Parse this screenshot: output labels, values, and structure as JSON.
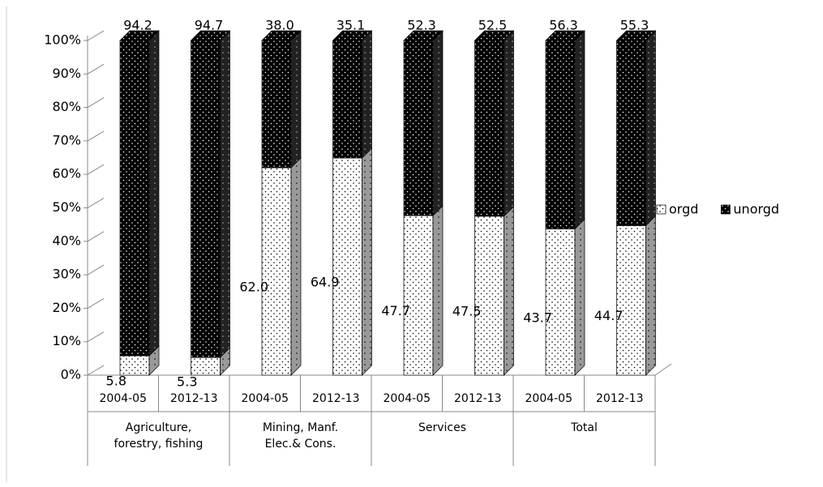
{
  "chart_data": {
    "type": "stacked_bar_3d",
    "categories": [
      "2004-05",
      "2012-13",
      "2004-05",
      "2012-13",
      "2004-05",
      "2012-13",
      "2004-05",
      "2012-13"
    ],
    "groups": [
      {
        "lines": [
          "Agriculture,",
          "forestry, fishing"
        ],
        "count": 2
      },
      {
        "lines": [
          "Mining, Manf.",
          "Elec.& Cons."
        ],
        "count": 2
      },
      {
        "lines": [
          "Services"
        ],
        "count": 2
      },
      {
        "lines": [
          "Total"
        ],
        "count": 2
      }
    ],
    "series": [
      {
        "name": "orgd",
        "color": "#ffffff",
        "values": [
          5.8,
          5.3,
          62.0,
          64.9,
          47.7,
          47.5,
          43.7,
          44.7
        ],
        "value_labels": [
          "5.8",
          "5.3",
          "62.0",
          "64.9",
          "47.7",
          "47.5",
          "43.7",
          "44.7"
        ]
      },
      {
        "name": "unorgd",
        "color": "#000000",
        "values": [
          94.2,
          94.7,
          38.0,
          35.1,
          52.3,
          52.5,
          56.3,
          55.3
        ],
        "value_labels": [
          "94.2",
          "94.7",
          "38.0",
          "35.1",
          "52.3",
          "52.5",
          "56.3",
          "55.3"
        ]
      }
    ],
    "ylim": [
      0,
      100
    ],
    "yticks": [
      {
        "value": 0,
        "label": "0%"
      },
      {
        "value": 10,
        "label": "10%"
      },
      {
        "value": 20,
        "label": "20%"
      },
      {
        "value": 30,
        "label": "30%"
      },
      {
        "value": 40,
        "label": "40%"
      },
      {
        "value": 50,
        "label": "50%"
      },
      {
        "value": 60,
        "label": "60%"
      },
      {
        "value": 70,
        "label": "70%"
      },
      {
        "value": 80,
        "label": "80%"
      },
      {
        "value": 90,
        "label": "90%"
      },
      {
        "value": 100,
        "label": "100%"
      }
    ],
    "legend": "right"
  }
}
